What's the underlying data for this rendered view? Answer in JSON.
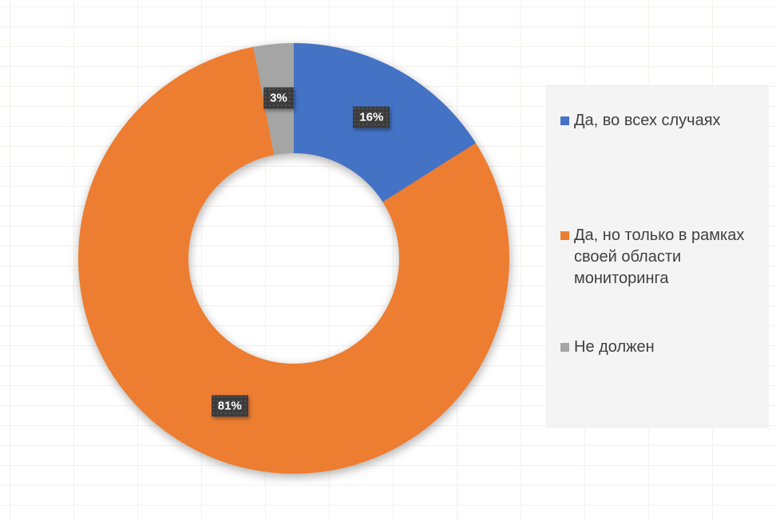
{
  "chart_data": {
    "type": "pie",
    "subtype": "donut",
    "title": "",
    "unit": "%",
    "start_angle_deg": 0,
    "direction": "clockwise",
    "legend_position": "right",
    "slices": [
      {
        "label": "Да, во всех случаях",
        "value": 16,
        "display": "16%",
        "color": "#4472C4"
      },
      {
        "label": "Да, но только в рамках своей области мониторинга",
        "value": 81,
        "display": "81%",
        "color": "#ED7D31"
      },
      {
        "label": "Не должен",
        "value": 3,
        "display": "3%",
        "color": "#A5A5A5"
      }
    ],
    "data_labels": {
      "box_color": "#3B3B3B",
      "text_color": "#FFFFFF"
    }
  },
  "legend": {
    "position": "right",
    "background": "#F2F2F2"
  }
}
